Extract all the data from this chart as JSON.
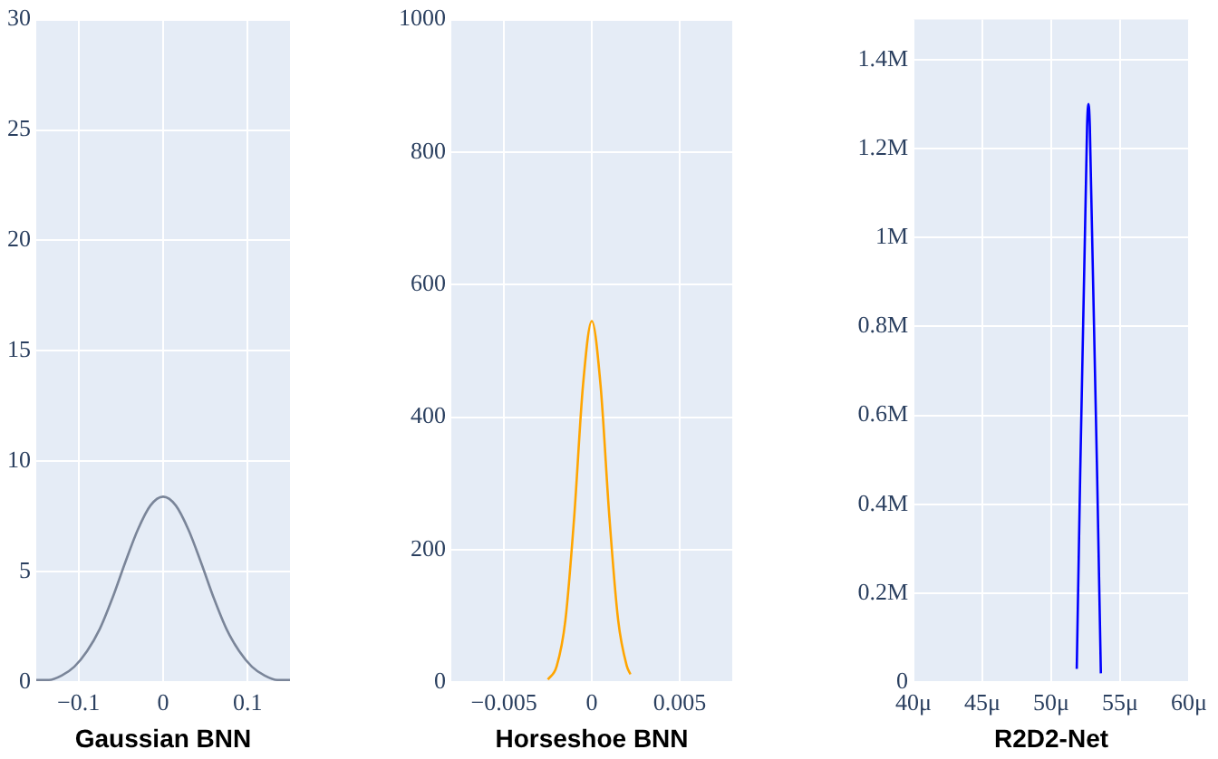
{
  "chart_data": [
    {
      "type": "line",
      "xlabel": "Gaussian BNN",
      "x": [
        -0.15,
        -0.135,
        -0.12,
        -0.105,
        -0.09,
        -0.075,
        -0.06,
        -0.045,
        -0.03,
        -0.015,
        0,
        0.015,
        0.03,
        0.045,
        0.06,
        0.075,
        0.09,
        0.105,
        0.12,
        0.135,
        0.15
      ],
      "values": [
        0.1,
        0.1,
        0.3,
        0.7,
        1.4,
        2.4,
        3.8,
        5.4,
        6.9,
        8,
        8.4,
        8,
        6.9,
        5.4,
        3.8,
        2.4,
        1.4,
        0.7,
        0.3,
        0.1,
        0.1
      ],
      "color": "#7a8599",
      "xlim": [
        -0.15,
        0.15
      ],
      "xticks": [
        {
          "value": -0.1,
          "label": "−0.1"
        },
        0,
        0.1
      ],
      "ylim": [
        0,
        30
      ],
      "yticks": [
        0,
        5,
        10,
        15,
        20,
        25,
        30
      ],
      "grid": true
    },
    {
      "type": "line",
      "xlabel": "Horseshoe BNN",
      "x": [
        -0.0025,
        -0.002,
        -0.0015,
        -0.001,
        -0.0005,
        0,
        0.0005,
        0.001,
        0.0015,
        0.002,
        0.0022
      ],
      "values": [
        4,
        24,
        94,
        250,
        448,
        545,
        448,
        250,
        94,
        24,
        12
      ],
      "color": "#ffa500",
      "xlim": [
        -0.008,
        0.008
      ],
      "xticks": [
        {
          "value": -0.005,
          "label": "−0.005"
        },
        0,
        0.005
      ],
      "ylim": [
        0,
        1000
      ],
      "yticks": [
        0,
        200,
        400,
        600,
        800,
        1000
      ],
      "grid": true
    },
    {
      "type": "line",
      "xlabel": "R2D2-Net",
      "x": [
        51.85,
        52.6,
        52.7,
        52.8,
        53.6
      ],
      "values": [
        30000,
        1250000,
        1300000,
        1250000,
        20000
      ],
      "color": "#0000ff",
      "xlim": [
        40,
        60
      ],
      "xticks": [
        {
          "value": 40,
          "label": "40μ"
        },
        {
          "value": 45,
          "label": "45μ"
        },
        {
          "value": 50,
          "label": "50μ"
        },
        {
          "value": 55,
          "label": "55μ"
        },
        {
          "value": 60,
          "label": "60μ"
        }
      ],
      "ylim": [
        0,
        1490000
      ],
      "yticks": [
        0,
        {
          "value": 200000,
          "label": "0.2M"
        },
        {
          "value": 400000,
          "label": "0.4M"
        },
        {
          "value": 600000,
          "label": "0.6M"
        },
        {
          "value": 800000,
          "label": "0.8M"
        },
        {
          "value": 1000000,
          "label": "1M"
        },
        {
          "value": 1200000,
          "label": "1.2M"
        },
        {
          "value": 1400000,
          "label": "1.4M"
        }
      ],
      "grid": true
    }
  ]
}
